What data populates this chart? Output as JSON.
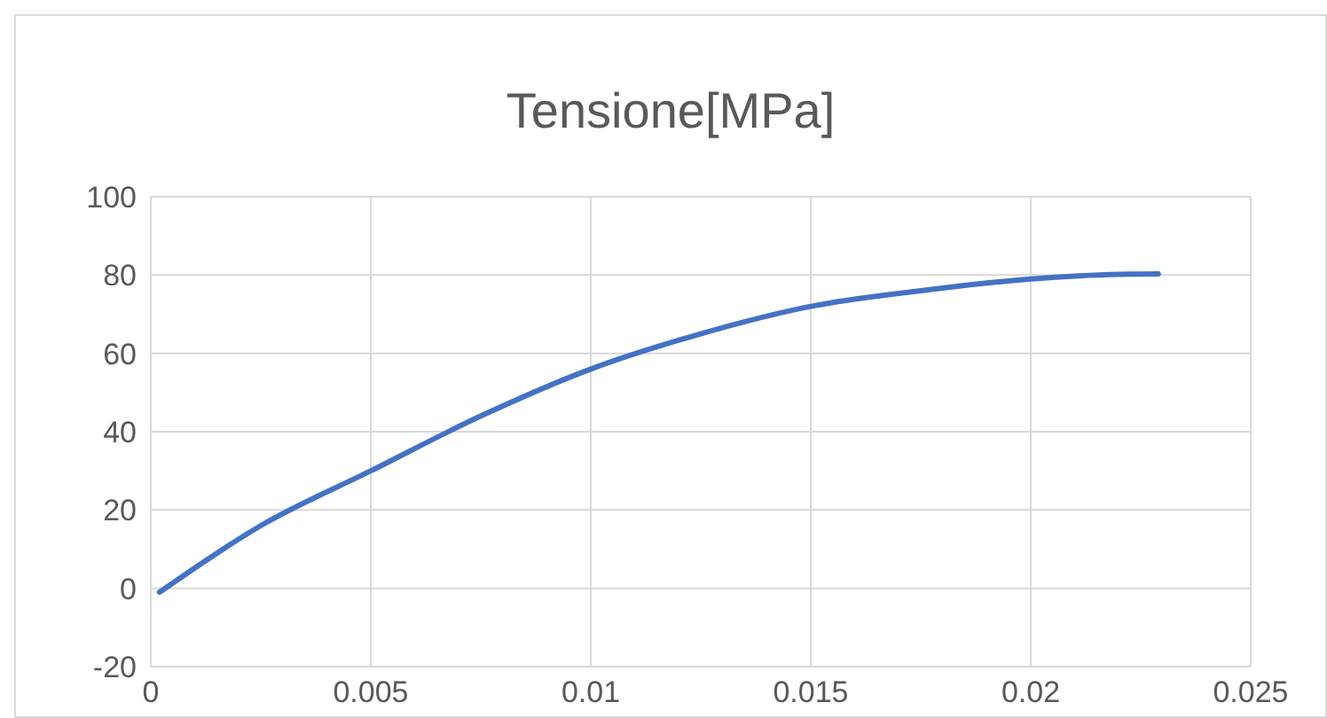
{
  "chart_data": {
    "type": "line",
    "title": "Tensione[MPa]",
    "series": [
      {
        "color": "#4472c4",
        "x": [
          0.0002,
          0.0025,
          0.005,
          0.0075,
          0.01,
          0.0125,
          0.015,
          0.0175,
          0.02,
          0.022,
          0.0229
        ],
        "values": [
          -1,
          16,
          30,
          44,
          56,
          65,
          72,
          76,
          79,
          80.2,
          80.3
        ]
      }
    ],
    "xlim": [
      0,
      0.025
    ],
    "xticks": [
      0,
      0.005,
      0.01,
      0.015,
      0.02,
      0.025
    ],
    "ylim": [
      -20,
      100
    ],
    "yticks": [
      -20,
      0,
      20,
      40,
      60,
      80,
      100
    ],
    "grid": true,
    "marker": "none",
    "line_style": "solid",
    "legend": false
  }
}
